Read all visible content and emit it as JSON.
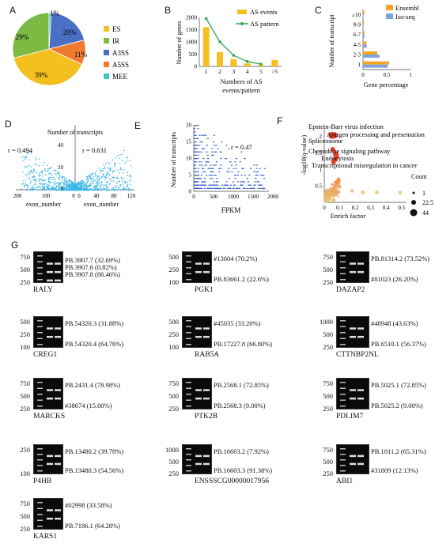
{
  "panels": {
    "A": "A",
    "B": "B",
    "C": "C",
    "D": "D",
    "E": "E",
    "F": "F",
    "G": "G"
  },
  "pie": {
    "slices": [
      {
        "name": "ES",
        "pct": 39,
        "label": "39%",
        "color": "#f4c020"
      },
      {
        "name": "IR",
        "pct": 29,
        "label": "29%",
        "color": "#7cba44"
      },
      {
        "name": "A3SS",
        "pct": 20,
        "label": "20%",
        "color": "#4b6fc4"
      },
      {
        "name": "A5SS",
        "pct": 11,
        "label": "11%",
        "color": "#ef7b30"
      },
      {
        "name": "MEE",
        "pct": 1,
        "label": "1%",
        "color": "#3fc8c0"
      }
    ]
  },
  "chart_data": [
    {
      "type": "pie",
      "categories": [
        "ES",
        "IR",
        "A3SS",
        "A5SS",
        "MEE"
      ],
      "values": [
        39,
        29,
        20,
        11,
        1
      ]
    },
    {
      "type": "bar",
      "categories": [
        "1",
        "2",
        "3",
        "4",
        "5",
        ">5"
      ],
      "series": [
        {
          "name": "AS events",
          "values": [
            1600,
            580,
            300,
            120,
            50,
            260
          ]
        },
        {
          "name": "AS pattern",
          "values": [
            1950,
            1000,
            450,
            200,
            90,
            null
          ]
        }
      ],
      "xlabel": "Numbers of AS events/pattern",
      "ylabel": "Number of genes",
      "yticks": [
        "0",
        "500",
        "1000",
        "1500",
        "2000"
      ],
      "ylim": [
        0,
        2000
      ]
    },
    {
      "type": "bar",
      "categories": [
        "1",
        "2-3",
        "4-5",
        "6-7",
        "8-9",
        "≥10"
      ],
      "series": [
        {
          "name": "Ensembl",
          "values": [
            0.55,
            0.3,
            0.07,
            0.03,
            0.02,
            0.03
          ]
        },
        {
          "name": "Iso-seq",
          "values": [
            0.52,
            0.35,
            0.08,
            0.03,
            0.01,
            0.01
          ]
        }
      ],
      "xlabel": "Gene percentage",
      "ylabel": "Number of transcript",
      "xticks": [
        "0",
        "0.5",
        "1"
      ]
    },
    {
      "type": "scatter",
      "title": "",
      "ylabel": "Number of transcripts",
      "xlabel_left": "exon_number",
      "xlabel_right": "exon_number",
      "r_left": "r = 0.494",
      "r_right": "r = 0.631",
      "xticks_left": [
        "200",
        "100",
        "0"
      ],
      "xticks_right": [
        "0",
        "40",
        "80",
        "120"
      ],
      "yticks": [
        "0",
        "20",
        "40"
      ]
    },
    {
      "type": "scatter",
      "xlabel": "FPKM",
      "ylabel": "Number of transcripts",
      "r": "r = 0.47",
      "xticks": [
        "0",
        "500",
        "1000",
        "1500",
        "2000"
      ],
      "yticks": [
        "0",
        "5",
        "10",
        "15",
        "20"
      ]
    },
    {
      "type": "scatter",
      "xlabel": "Enrich factor",
      "ylabel": "-log10(q-value)",
      "xticks": [
        "0",
        "0.1",
        "0.2",
        "0.3",
        "0.4",
        "0.5"
      ],
      "yticks": [
        "0.5",
        "1",
        "1.5",
        "2"
      ],
      "terms": [
        "Epstein-Barr virus infection",
        "Antigen processing and presentation",
        "Spliceosome",
        "Chemokine signaling pathway",
        "Endocytosis",
        "Transcriptional misregulation in cancer"
      ],
      "legend_title": "Count",
      "legend_values": [
        "1",
        "22.5",
        "44"
      ]
    }
  ],
  "legends": {
    "b_events": "AS events",
    "b_pattern": "AS pattern",
    "c_ensembl": "Ensembl",
    "c_iso": "Iso-seq"
  },
  "gels": [
    {
      "name": "RALY",
      "ladder": [
        "750",
        "500",
        "250"
      ],
      "isoforms": [
        "PB.3907.7 (32.69%)",
        "PB.3907.6 (0.82%)",
        "PB.3907.8 (86.46%)"
      ]
    },
    {
      "name": "PGK1",
      "ladder": [
        "500",
        "250",
        "100"
      ],
      "isoforms": [
        "#13604 (70.2%)",
        "PB.83661.2 (22.6%)"
      ]
    },
    {
      "name": "DAZAP2",
      "ladder": [
        "750",
        "500",
        "250"
      ],
      "isoforms": [
        "PB.81314.2 (73.52%)",
        "#81023 (26.20%)"
      ]
    },
    {
      "name": "CREG1",
      "ladder": [
        "500",
        "250",
        "100"
      ],
      "isoforms": [
        "PB.54320.3 (31.88%)",
        "PB.54320.4 (64.76%)"
      ]
    },
    {
      "name": "RAB5A",
      "ladder": [
        "500",
        "250",
        "100"
      ],
      "isoforms": [
        "#45035 (33.20%)",
        "PB.17227.8 (66.80%)"
      ]
    },
    {
      "name": "CTTNBP2NL",
      "ladder": [
        "1000",
        "500",
        "250"
      ],
      "isoforms": [
        "#48948 (43.63%)",
        "PB.6510.1 (56.37%)"
      ]
    },
    {
      "name": "MARCKS",
      "ladder": [
        "750",
        "500",
        "250"
      ],
      "isoforms": [
        "PB.2431.4 (78.98%)",
        "#38674 (15.00%)"
      ]
    },
    {
      "name": "PTK2B",
      "ladder": [
        "750",
        "500",
        "250"
      ],
      "isoforms": [
        "PB.2568.1 (72.85%)",
        "PB.2568.3 (9.00%)"
      ]
    },
    {
      "name": "PDLIM7",
      "ladder": [
        "750",
        "500",
        "250"
      ],
      "isoforms": [
        "PB.5025.1 (72.85%)",
        "PB.5025.2 (9.00%)"
      ]
    },
    {
      "name": "P4HB",
      "ladder": [
        "250",
        "100"
      ],
      "isoforms": [
        "PB.13480.2 (39.78%)",
        "PB.13480.3 (54.56%)"
      ]
    },
    {
      "name": "ENSSSCG00000017956",
      "ladder": [
        "1000",
        "500",
        "250"
      ],
      "isoforms": [
        "PB.16603.2 (7.92%)",
        "PB.16603.3 (91.38%)"
      ]
    },
    {
      "name": "ABI1",
      "ladder": [
        "750",
        "500",
        "250"
      ],
      "isoforms": [
        "PB.1011.2 (65.31%)",
        "#31809 (12.13%)"
      ]
    },
    {
      "name": "KARS1",
      "ladder": [
        "750",
        "500",
        "250"
      ],
      "isoforms": [
        "#02998 (33.58%)",
        "PB.7186.1 (64.28%)"
      ]
    }
  ]
}
